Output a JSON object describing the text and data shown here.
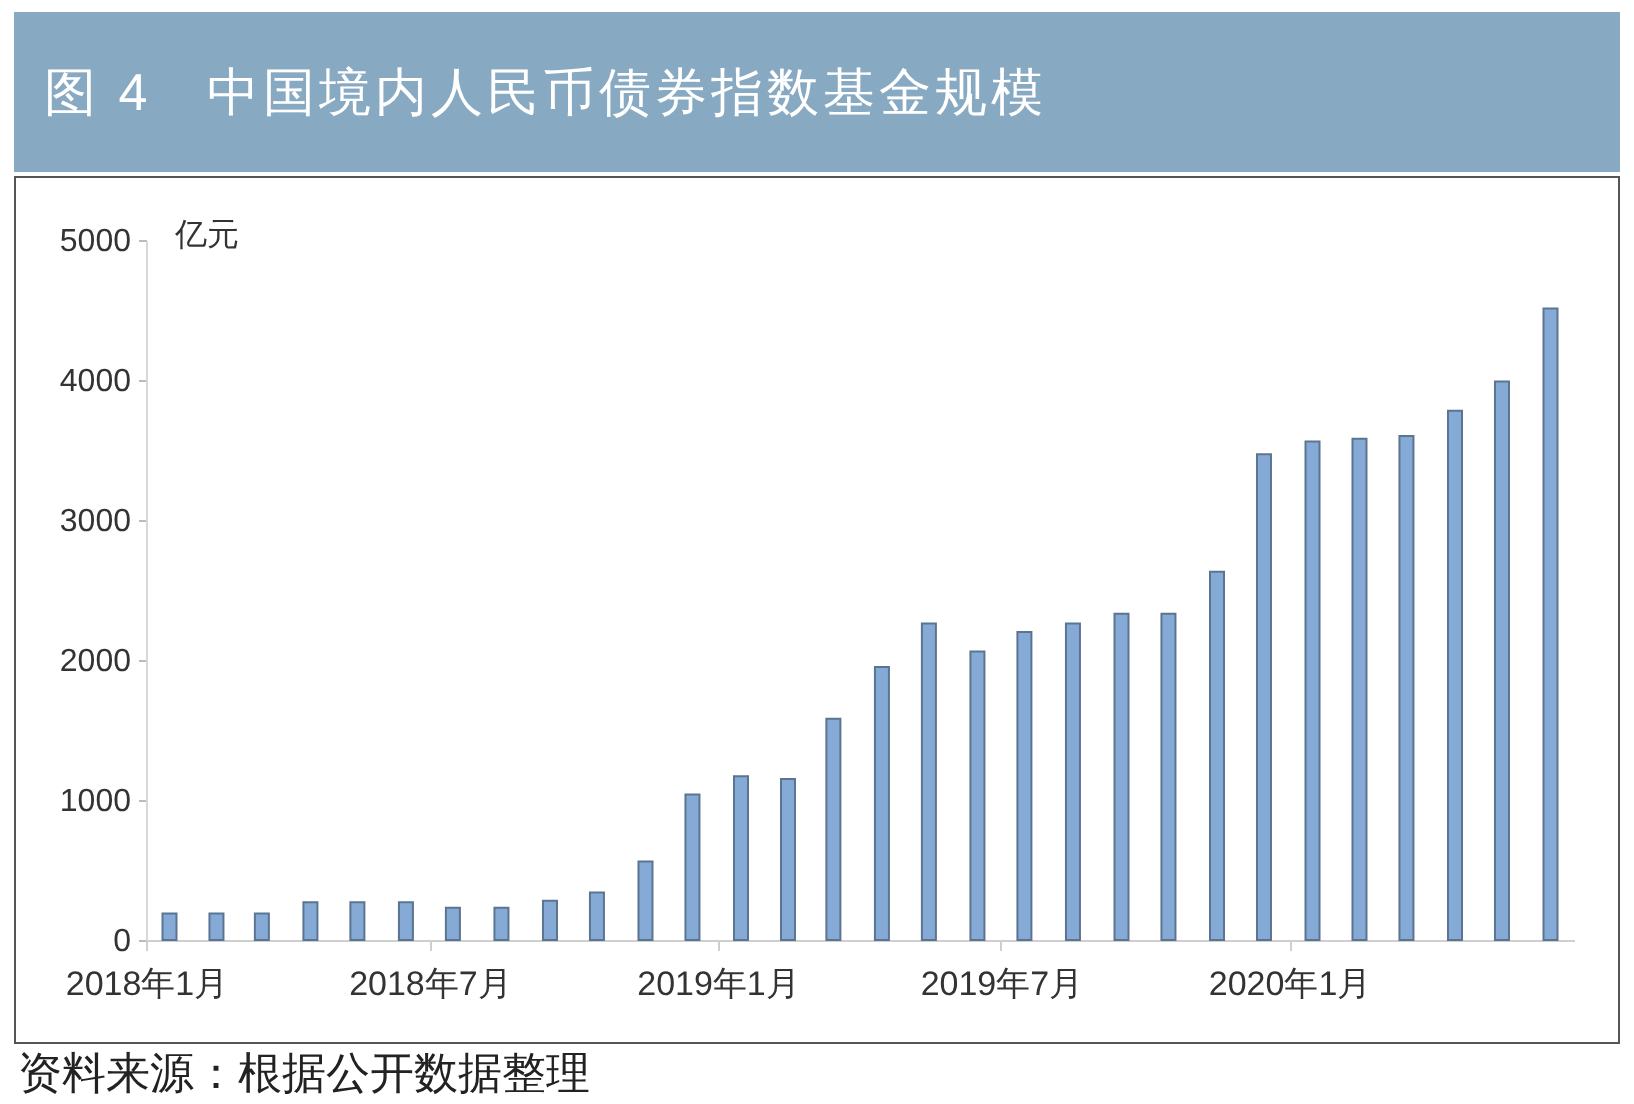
{
  "chart_data": {
    "type": "bar",
    "title": "图 4　中国境内人民币债券指数基金规模",
    "ylabel": "亿元",
    "annotations": [
      "资料来源：根据公开数据整理"
    ],
    "x": [
      "2018-01-16",
      "2018-02-15",
      "2018-03-16",
      "2018-04-16",
      "2018-05-16",
      "2018-06-16",
      "2018-07-16",
      "2018-08-16",
      "2018-09-16",
      "2018-10-16",
      "2018-11-16",
      "2018-12-16",
      "2019-01-16",
      "2019-02-15",
      "2019-03-16",
      "2019-04-16",
      "2019-05-16",
      "2019-06-16",
      "2019-07-16",
      "2019-08-16",
      "2019-09-16",
      "2019-10-16",
      "2019-11-16",
      "2019-12-16",
      "2020-01-16",
      "2020-02-15",
      "2020-03-16",
      "2020-04-16",
      "2020-05-16",
      "2020-06-16"
    ],
    "values": [
      190,
      190,
      190,
      270,
      270,
      270,
      230,
      230,
      280,
      340,
      560,
      1040,
      1170,
      1150,
      1580,
      1950,
      2260,
      2060,
      2200,
      2260,
      2330,
      2330,
      2630,
      3470,
      3560,
      3580,
      3600,
      3780,
      3990,
      4510
    ],
    "color": "#86aad6",
    "xlim": [
      "2018-01",
      "2020-07"
    ],
    "xticks": [
      {
        "value": "2018-01",
        "label": "2018年1月"
      },
      {
        "value": "2018-07",
        "label": "2018年7月"
      },
      {
        "value": "2019-01",
        "label": "2019年1月"
      },
      {
        "value": "2019-07",
        "label": "2019年7月"
      },
      {
        "value": "2020-01",
        "label": "2020年1月"
      }
    ],
    "ylim": [
      0,
      5000
    ],
    "yticks": [
      0,
      1000,
      2000,
      3000,
      4000,
      5000
    ]
  }
}
